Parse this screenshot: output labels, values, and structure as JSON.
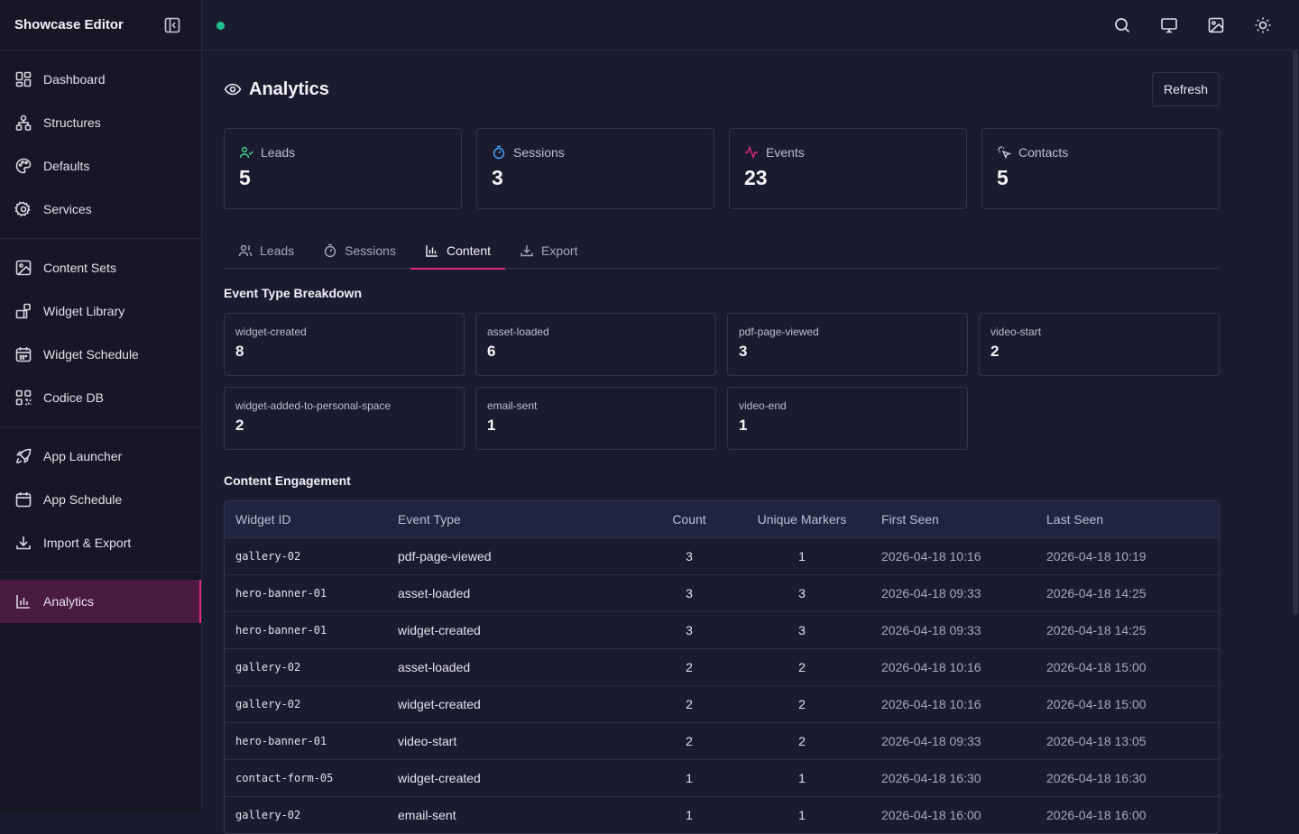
{
  "app": {
    "title": "Showcase Editor"
  },
  "sidebar": {
    "groups": [
      [
        {
          "label": "Dashboard",
          "icon": "dashboard-icon"
        },
        {
          "label": "Structures",
          "icon": "structures-icon"
        },
        {
          "label": "Defaults",
          "icon": "palette-icon"
        },
        {
          "label": "Services",
          "icon": "gear-icon"
        }
      ],
      [
        {
          "label": "Content Sets",
          "icon": "image-icon"
        },
        {
          "label": "Widget Library",
          "icon": "widget-icon"
        },
        {
          "label": "Widget Schedule",
          "icon": "calendar-icon"
        },
        {
          "label": "Codice DB",
          "icon": "qr-icon"
        }
      ],
      [
        {
          "label": "App Launcher",
          "icon": "rocket-icon"
        },
        {
          "label": "App Schedule",
          "icon": "calendar-icon"
        },
        {
          "label": "Import & Export",
          "icon": "download-icon"
        }
      ],
      [
        {
          "label": "Analytics",
          "icon": "bar-chart-icon",
          "active": true
        }
      ]
    ]
  },
  "topbar": {
    "status_color": "#22c08a"
  },
  "page": {
    "title": "Analytics",
    "refresh_label": "Refresh"
  },
  "stats": [
    {
      "label": "Leads",
      "value": "5",
      "color": "#3ecf8e"
    },
    {
      "label": "Sessions",
      "value": "3",
      "color": "#4aa8ff"
    },
    {
      "label": "Events",
      "value": "23",
      "color": "#e0287a"
    },
    {
      "label": "Contacts",
      "value": "5",
      "color": "#c9c9d6"
    }
  ],
  "tabs": [
    {
      "label": "Leads"
    },
    {
      "label": "Sessions"
    },
    {
      "label": "Content",
      "active": true
    },
    {
      "label": "Export"
    }
  ],
  "breakdown": {
    "title": "Event Type Breakdown",
    "items": [
      {
        "label": "widget-created",
        "value": "8"
      },
      {
        "label": "asset-loaded",
        "value": "6"
      },
      {
        "label": "pdf-page-viewed",
        "value": "3"
      },
      {
        "label": "video-start",
        "value": "2"
      },
      {
        "label": "widget-added-to-personal-space",
        "value": "2"
      },
      {
        "label": "email-sent",
        "value": "1"
      },
      {
        "label": "video-end",
        "value": "1"
      }
    ]
  },
  "engagement": {
    "title": "Content Engagement",
    "columns": [
      "Widget ID",
      "Event Type",
      "Count",
      "Unique Markers",
      "First Seen",
      "Last Seen"
    ],
    "rows": [
      [
        "gallery-02",
        "pdf-page-viewed",
        "3",
        "1",
        "2026-04-18 10:16",
        "2026-04-18 10:19"
      ],
      [
        "hero-banner-01",
        "asset-loaded",
        "3",
        "3",
        "2026-04-18 09:33",
        "2026-04-18 14:25"
      ],
      [
        "hero-banner-01",
        "widget-created",
        "3",
        "3",
        "2026-04-18 09:33",
        "2026-04-18 14:25"
      ],
      [
        "gallery-02",
        "asset-loaded",
        "2",
        "2",
        "2026-04-18 10:16",
        "2026-04-18 15:00"
      ],
      [
        "gallery-02",
        "widget-created",
        "2",
        "2",
        "2026-04-18 10:16",
        "2026-04-18 15:00"
      ],
      [
        "hero-banner-01",
        "video-start",
        "2",
        "2",
        "2026-04-18 09:33",
        "2026-04-18 13:05"
      ],
      [
        "contact-form-05",
        "widget-created",
        "1",
        "1",
        "2026-04-18 16:30",
        "2026-04-18 16:30"
      ],
      [
        "gallery-02",
        "email-sent",
        "1",
        "1",
        "2026-04-18 16:00",
        "2026-04-18 16:00"
      ]
    ]
  }
}
